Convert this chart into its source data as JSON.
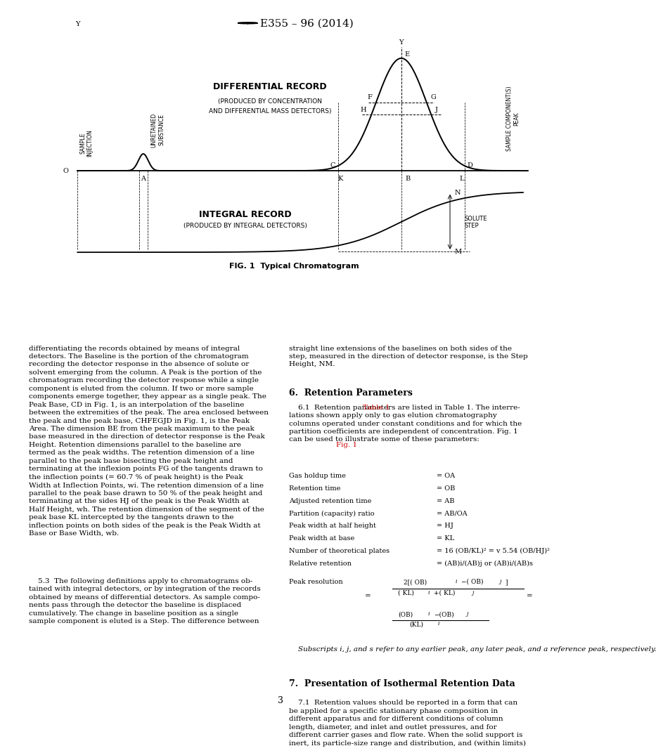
{
  "title": "E355 – 96 (2014)",
  "fig_caption": "FIG. 1  Typical Chromatogram",
  "diff_record_title": "DIFFERENTIAL RECORD",
  "diff_record_sub1": "(PRODUCED BY CONCENTRATION",
  "diff_record_sub2": "AND DIFFERENTIAL MASS DETECTORS)",
  "integral_record_title": "INTEGRAL RECORD",
  "integral_record_sub": "(PRODUCED BY INTEGRAL DETECTORS)",
  "page_number": "3",
  "red_color": "#cc0000",
  "retention_params": [
    [
      "Gas holdup time",
      "= OA"
    ],
    [
      "Retention time",
      "= OB"
    ],
    [
      "Adjusted retention time",
      "= AB"
    ],
    [
      "Partition (capacity) ratio",
      "= AB/OA"
    ],
    [
      "Peak width at half height",
      "= HJ"
    ],
    [
      "Peak width at base",
      "= KL"
    ],
    [
      "Number of theoretical plates",
      "= 16 (OB/KL)² = v 5.54 (OB/HJ)²"
    ],
    [
      "Relative retention",
      "= (AB)i/(AB)j or (AB)i/(AB)s"
    ]
  ],
  "subscript_note": "    Subscripts i, j, and s refer to any earlier peak, any later peak, and a reference peak, respectively.",
  "sec7_title": "7.  Presentation of Isothermal Retention Data",
  "sec7_text": "    7.1  Retention values should be reported in a form that can be applied for a specific stationary phase composition in different apparatus and for different conditions of column length, diameter, and inlet and outlet pressures, and for different carrier gases and flow rate. When the solid support is inert, its particle-size range and distribution, and (within limits)"
}
